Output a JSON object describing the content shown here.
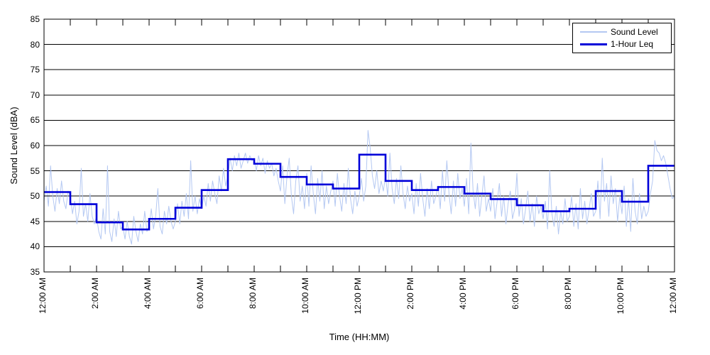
{
  "chart_data": {
    "type": "line",
    "title": "",
    "xlabel": "Time (HH:MM)",
    "ylabel": "Sound Level (dBA)",
    "grid": "horizontal",
    "background_color": "#ffffff",
    "axis_color": "#000000",
    "grid_color": "#000000",
    "x_axis": {
      "unit": "hours",
      "range_hours": [
        0,
        24
      ],
      "major_tick_every_hours": 2,
      "minor_tick_every_hours": 1,
      "tick_labels": [
        "12:00 AM",
        "2:00 AM",
        "4:00 AM",
        "6:00 AM",
        "8:00 AM",
        "10:00 AM",
        "12:00 PM",
        "2:00 PM",
        "4:00 PM",
        "6:00 PM",
        "8:00 PM",
        "10:00 PM",
        "12:00 AM"
      ]
    },
    "y_axis": {
      "range": [
        35,
        85
      ],
      "tick_step": 5,
      "tick_labels": [
        "35",
        "40",
        "45",
        "50",
        "55",
        "60",
        "65",
        "70",
        "75",
        "80",
        "85"
      ]
    },
    "legend": {
      "position": "top-right",
      "entries": [
        {
          "label": "Sound Level",
          "color": "#b4c8f2",
          "line_width": 2
        },
        {
          "label": "1-Hour Leq",
          "color": "#0000d9",
          "line_width": 3
        }
      ]
    },
    "series": [
      {
        "name": "Sound Level",
        "style": "raw-line",
        "color": "#b4c8f2",
        "stroke_width": 1,
        "sample_interval_minutes": 5,
        "start_hour": 0,
        "values": [
          49,
          52,
          48,
          56,
          50,
          47,
          51.5,
          48.5,
          53,
          49,
          47.5,
          51,
          50,
          46.5,
          49,
          44.5,
          47,
          55.5,
          46,
          48.5,
          45,
          50.5,
          46,
          44.5,
          46,
          43,
          41.5,
          47.5,
          42.5,
          56,
          43,
          41,
          45.5,
          42,
          47,
          43.5,
          44,
          41.5,
          45,
          42,
          40.5,
          46,
          43,
          41,
          44.5,
          42.5,
          47,
          43,
          44,
          47.5,
          43.5,
          46,
          51.5,
          44,
          42.5,
          47,
          44.5,
          48,
          45,
          43.5,
          45,
          48.5,
          44.5,
          49,
          46,
          50.5,
          45.5,
          57,
          47,
          50,
          46.5,
          49.5,
          47.5,
          50,
          48,
          52.5,
          49,
          53,
          50.5,
          48.5,
          54,
          51,
          55.5,
          52,
          54,
          57.5,
          55,
          58,
          56,
          58.5,
          55.5,
          57,
          58.5,
          56.5,
          58,
          57,
          57.5,
          55,
          58,
          56,
          57.5,
          54.5,
          57,
          55.5,
          56.5,
          54,
          55.5,
          53,
          51,
          56,
          48.5,
          54,
          57.5,
          50,
          46.5,
          53,
          56,
          49,
          52,
          47.5,
          54.5,
          48,
          56,
          50.5,
          46.5,
          53.5,
          49,
          55,
          47.5,
          52,
          48.5,
          51,
          53,
          48,
          54.5,
          50,
          47,
          52.5,
          48.5,
          55.5,
          49.5,
          46.5,
          51,
          48,
          50,
          53.5,
          49,
          52,
          63,
          59.5,
          54,
          51.5,
          55,
          50.5,
          53,
          51,
          54,
          50,
          58.5,
          51.5,
          48.5,
          53.5,
          49.5,
          56,
          50.5,
          47.5,
          52,
          49,
          50.5,
          46.5,
          52.5,
          48,
          54.5,
          49.5,
          46,
          51.5,
          47.5,
          53,
          48.5,
          50,
          52,
          47.5,
          55,
          49,
          57,
          50.5,
          46.5,
          53,
          48,
          54.5,
          49.5,
          51.5,
          48,
          53.5,
          46.5,
          60.5,
          51,
          47.5,
          52.5,
          46,
          50,
          54,
          47,
          49.5,
          47,
          51.5,
          45.5,
          49,
          52.5,
          46,
          50,
          44.5,
          48.5,
          51,
          45.5,
          47.5,
          54.5,
          46,
          49.5,
          44.5,
          47.5,
          51,
          45,
          48.5,
          44,
          50,
          46.5,
          48,
          45.5,
          49,
          43.5,
          55,
          46.5,
          44,
          48,
          42.5,
          47,
          44.5,
          49.5,
          45,
          46,
          50,
          44,
          48.5,
          43.5,
          51.5,
          45.5,
          49,
          44.5,
          47.5,
          50.5,
          46,
          47,
          53,
          45.5,
          57.5,
          49,
          52.5,
          46,
          54,
          48.5,
          51.5,
          45,
          50,
          46.5,
          52,
          44,
          49.5,
          43,
          53.5,
          47,
          44.5,
          50.5,
          45.5,
          48,
          46,
          47,
          50.5,
          53,
          61,
          59,
          58.5,
          57,
          58,
          56.5,
          54,
          51.5,
          49.5,
          50
        ]
      },
      {
        "name": "1-Hour Leq",
        "style": "step",
        "color": "#0000d9",
        "stroke_width": 2.6,
        "hours": [
          0,
          1,
          2,
          3,
          4,
          5,
          6,
          7,
          8,
          9,
          10,
          11,
          12,
          13,
          14,
          15,
          16,
          17,
          18,
          19,
          20,
          21,
          22,
          23
        ],
        "values": [
          50.8,
          48.4,
          44.8,
          43.4,
          45.5,
          47.7,
          51.2,
          57.3,
          56.4,
          53.8,
          52.3,
          51.5,
          58.2,
          53,
          51.2,
          51.8,
          50.5,
          49.4,
          48.2,
          47,
          47.5,
          51,
          48.9,
          56
        ]
      }
    ]
  }
}
